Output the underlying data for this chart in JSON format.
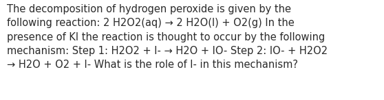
{
  "background_color": "#ffffff",
  "text_color": "#2a2a2a",
  "text": "The decomposition of hydrogen peroxide is given by the\nfollowing reaction: 2 H2O2(aq) → 2 H2O(l) + O2(g) In the\npresence of KI the reaction is thought to occur by the following\nmechanism: Step 1: H2O2 + I- → H2O + IO- Step 2: IO- + H2O2\n→ H2O + O2 + I- What is the role of I- in this mechanism?",
  "fontsize": 10.5,
  "font_family": "DejaVu Sans",
  "figwidth": 5.58,
  "figheight": 1.46,
  "dpi": 100
}
